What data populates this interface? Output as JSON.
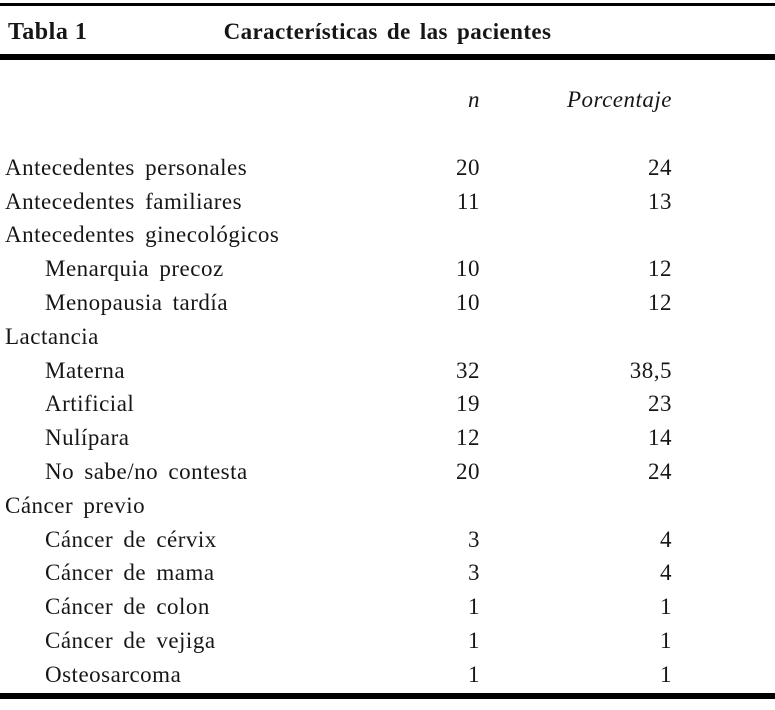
{
  "table": {
    "caption_label": "Tabla 1",
    "caption_title": "Características de las pacientes",
    "columns": {
      "n": "n",
      "pct": "Porcentaje"
    },
    "rows": [
      {
        "label": "Antecedentes personales",
        "indent": false,
        "n": "20",
        "pct": "24"
      },
      {
        "label": "Antecedentes familiares",
        "indent": false,
        "n": "11",
        "pct": "13"
      },
      {
        "label": "Antecedentes ginecológicos",
        "indent": false,
        "n": "",
        "pct": ""
      },
      {
        "label": "Menarquia precoz",
        "indent": true,
        "n": "10",
        "pct": "12"
      },
      {
        "label": "Menopausia tardía",
        "indent": true,
        "n": "10",
        "pct": "12"
      },
      {
        "label": "Lactancia",
        "indent": false,
        "n": "",
        "pct": ""
      },
      {
        "label": "Materna",
        "indent": true,
        "n": "32",
        "pct": "38,5"
      },
      {
        "label": "Artificial",
        "indent": true,
        "n": "19",
        "pct": "23"
      },
      {
        "label": "Nulípara",
        "indent": true,
        "n": "12",
        "pct": "14"
      },
      {
        "label": "No sabe/no contesta",
        "indent": true,
        "n": "20",
        "pct": "24"
      },
      {
        "label": "Cáncer previo",
        "indent": false,
        "n": "",
        "pct": ""
      },
      {
        "label": "Cáncer de cérvix",
        "indent": true,
        "n": "3",
        "pct": "4"
      },
      {
        "label": "Cáncer de mama",
        "indent": true,
        "n": "3",
        "pct": "4"
      },
      {
        "label": "Cáncer de colon",
        "indent": true,
        "n": "1",
        "pct": "1"
      },
      {
        "label": "Cáncer de vejiga",
        "indent": true,
        "n": "1",
        "pct": "1"
      },
      {
        "label": "Osteosarcoma",
        "indent": true,
        "n": "1",
        "pct": "1"
      }
    ]
  }
}
